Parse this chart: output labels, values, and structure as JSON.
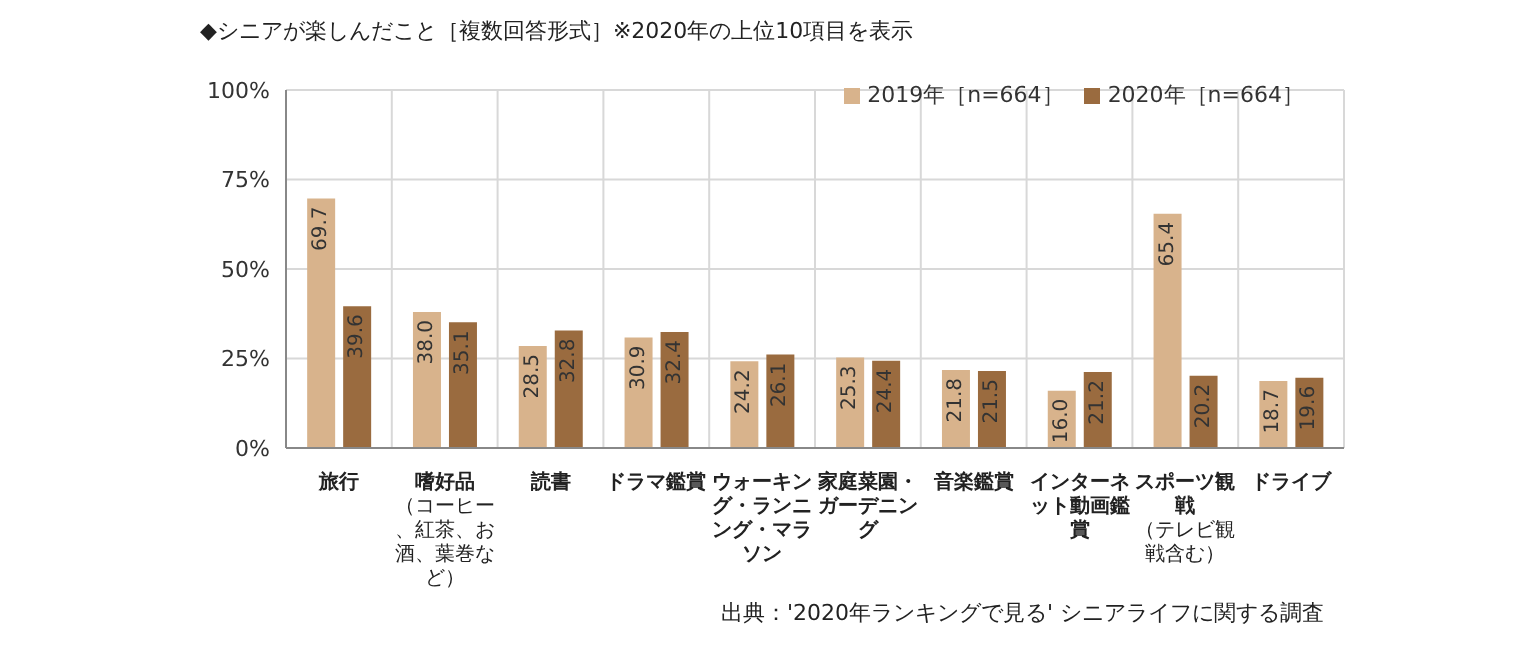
{
  "chart_data": {
    "type": "bar",
    "title": "◆シニアが楽しんだこと［複数回答形式］※2020年の上位10項目を表示",
    "categories": [
      "旅行",
      "嗜好品（コーヒー、紅茶、お酒、葉巻など）",
      "読書",
      "ドラマ鑑賞",
      "ウォーキング・ランニング・マラソン",
      "家庭菜園・ガーデニング",
      "音楽鑑賞",
      "インターネット動画鑑賞",
      "スポーツ観戦（テレビ観戦含む）",
      "ドライブ"
    ],
    "series": [
      {
        "name": "2019年［n=664］",
        "color": "#d8b38c",
        "values": [
          69.7,
          38.0,
          28.5,
          30.9,
          24.2,
          25.3,
          21.8,
          16.0,
          65.4,
          18.7
        ],
        "value_labels": [
          "69.7",
          "38.0",
          "28.5",
          "30.9",
          "24.2",
          "25.3",
          "21.8",
          "16.0",
          "65.4",
          "18.7"
        ]
      },
      {
        "name": "2020年［n=664］",
        "color": "#9a6b3f",
        "values": [
          39.6,
          35.1,
          32.8,
          32.4,
          26.1,
          24.4,
          21.5,
          21.2,
          20.2,
          19.6
        ],
        "value_labels": [
          "39.6",
          "35.1",
          "32.8",
          "32.4",
          "26.1",
          "24.4",
          "21.5",
          "21.2",
          "20.2",
          "19.6"
        ]
      }
    ],
    "ylim": [
      0,
      100
    ],
    "yticks": [
      {
        "value": 0,
        "label": "0%"
      },
      {
        "value": 25,
        "label": "25%"
      },
      {
        "value": 50,
        "label": "50%"
      },
      {
        "value": 75,
        "label": "75%"
      },
      {
        "value": 100,
        "label": "100%"
      }
    ],
    "grid": true,
    "legend": "top right",
    "annotations": [
      "出典：'2020年ランキングで見る' シニアライフに関する調査"
    ]
  }
}
